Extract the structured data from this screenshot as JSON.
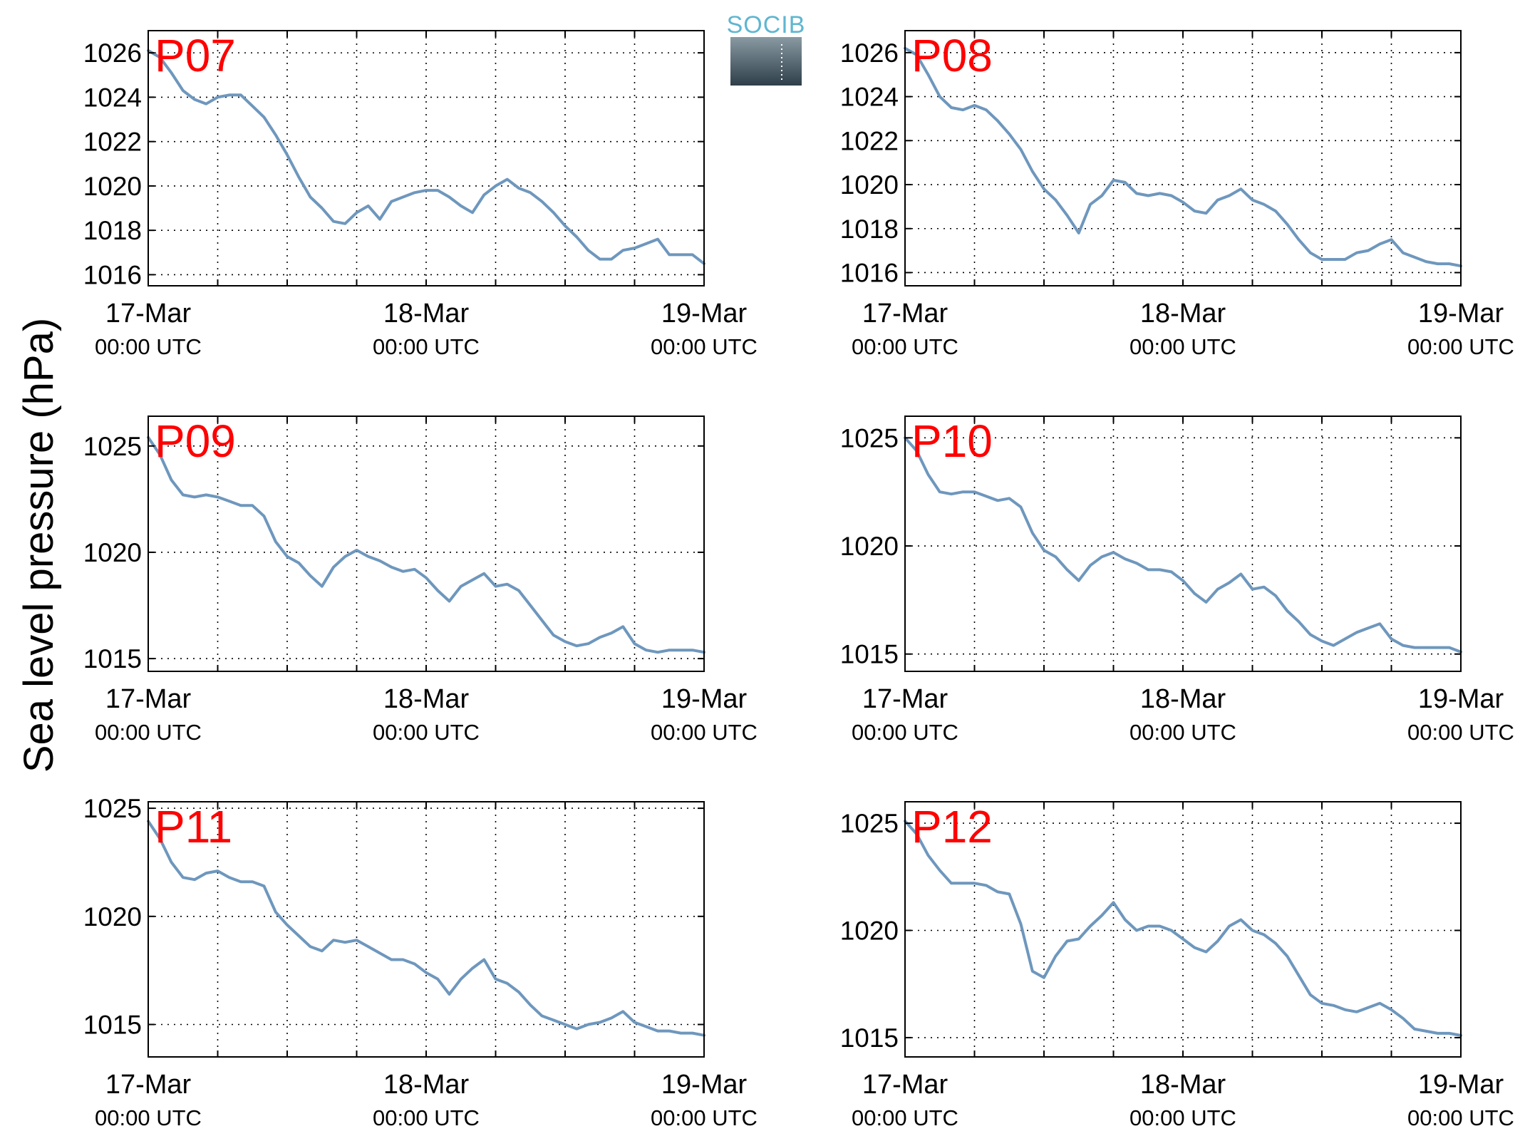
{
  "ylabel": "Sea level pressure (hPa)",
  "logo": {
    "text": "SOCIB",
    "colors": {
      "text": "#5fb6d0",
      "top": "#8a9aa3",
      "bottom": "#2e3f4a"
    }
  },
  "colors": {
    "line": "#6e97bd",
    "label": "#ff0000",
    "axis": "#000000",
    "grid": "#000000"
  },
  "grid": "dotted",
  "chart_data": [
    {
      "type": "line",
      "title": "P07",
      "xlim": [
        0,
        48
      ],
      "xticks": [
        0,
        24,
        48
      ],
      "xticklabels": [
        [
          "17-Mar",
          "00:00 UTC"
        ],
        [
          "18-Mar",
          "00:00 UTC"
        ],
        [
          "19-Mar",
          "00:00 UTC"
        ]
      ],
      "xgrid": [
        6,
        12,
        18,
        24,
        30,
        36,
        42
      ],
      "ylim": [
        1015.5,
        1027
      ],
      "yticks": [
        1016,
        1018,
        1020,
        1022,
        1024,
        1026
      ],
      "series": [
        {
          "x": [
            0,
            1,
            2,
            3,
            4,
            5,
            6,
            7,
            8,
            9,
            10,
            11,
            12,
            13,
            14,
            15,
            16,
            17,
            18,
            19,
            20,
            21,
            22,
            23,
            24,
            25,
            26,
            27,
            28,
            29,
            30,
            31,
            32,
            33,
            34,
            35,
            36,
            37,
            38,
            39,
            40,
            41,
            42,
            43,
            44,
            45,
            46,
            47,
            48
          ],
          "y": [
            1026.1,
            1025.8,
            1025.1,
            1024.3,
            1023.9,
            1023.7,
            1024.0,
            1024.1,
            1024.1,
            1023.6,
            1023.1,
            1022.3,
            1021.4,
            1020.4,
            1019.5,
            1019.0,
            1018.4,
            1018.3,
            1018.8,
            1019.1,
            1018.5,
            1019.3,
            1019.5,
            1019.7,
            1019.8,
            1019.8,
            1019.5,
            1019.1,
            1018.8,
            1019.6,
            1020.0,
            1020.3,
            1019.9,
            1019.7,
            1019.3,
            1018.8,
            1018.2,
            1017.7,
            1017.1,
            1016.7,
            1016.7,
            1017.1,
            1017.2,
            1017.4,
            1017.6,
            1016.9,
            1016.9,
            1016.9,
            1016.5
          ]
        }
      ]
    },
    {
      "type": "line",
      "title": "P08",
      "xlim": [
        0,
        48
      ],
      "xticks": [
        0,
        24,
        48
      ],
      "xticklabels": [
        [
          "17-Mar",
          "00:00 UTC"
        ],
        [
          "18-Mar",
          "00:00 UTC"
        ],
        [
          "19-Mar",
          "00:00 UTC"
        ]
      ],
      "xgrid": [
        6,
        12,
        18,
        24,
        30,
        36,
        42
      ],
      "ylim": [
        1015.4,
        1027
      ],
      "yticks": [
        1016,
        1018,
        1020,
        1022,
        1024,
        1026
      ],
      "series": [
        {
          "x": [
            0,
            1,
            2,
            3,
            4,
            5,
            6,
            7,
            8,
            9,
            10,
            11,
            12,
            13,
            14,
            15,
            16,
            17,
            18,
            19,
            20,
            21,
            22,
            23,
            24,
            25,
            26,
            27,
            28,
            29,
            30,
            31,
            32,
            33,
            34,
            35,
            36,
            37,
            38,
            39,
            40,
            41,
            42,
            43,
            44,
            45,
            46,
            47,
            48
          ],
          "y": [
            1026.2,
            1025.9,
            1025.0,
            1024.0,
            1023.5,
            1023.4,
            1023.6,
            1023.4,
            1022.9,
            1022.3,
            1021.6,
            1020.6,
            1019.8,
            1019.3,
            1018.6,
            1017.8,
            1019.1,
            1019.5,
            1020.2,
            1020.1,
            1019.6,
            1019.5,
            1019.6,
            1019.5,
            1019.2,
            1018.8,
            1018.7,
            1019.3,
            1019.5,
            1019.8,
            1019.3,
            1019.1,
            1018.8,
            1018.2,
            1017.5,
            1016.9,
            1016.6,
            1016.6,
            1016.6,
            1016.9,
            1017.0,
            1017.3,
            1017.5,
            1016.9,
            1016.7,
            1016.5,
            1016.4,
            1016.4,
            1016.3
          ]
        }
      ]
    },
    {
      "type": "line",
      "title": "P09",
      "xlim": [
        0,
        48
      ],
      "xticks": [
        0,
        24,
        48
      ],
      "xticklabels": [
        [
          "17-Mar",
          "00:00 UTC"
        ],
        [
          "18-Mar",
          "00:00 UTC"
        ],
        [
          "19-Mar",
          "00:00 UTC"
        ]
      ],
      "xgrid": [
        6,
        12,
        18,
        24,
        30,
        36,
        42
      ],
      "ylim": [
        1014.4,
        1026.4
      ],
      "yticks": [
        1015,
        1020,
        1025
      ],
      "series": [
        {
          "x": [
            0,
            1,
            2,
            3,
            4,
            5,
            6,
            7,
            8,
            9,
            10,
            11,
            12,
            13,
            14,
            15,
            16,
            17,
            18,
            19,
            20,
            21,
            22,
            23,
            24,
            25,
            26,
            27,
            28,
            29,
            30,
            31,
            32,
            33,
            34,
            35,
            36,
            37,
            38,
            39,
            40,
            41,
            42,
            43,
            44,
            45,
            46,
            47,
            48
          ],
          "y": [
            1025.4,
            1024.6,
            1023.4,
            1022.7,
            1022.6,
            1022.7,
            1022.6,
            1022.4,
            1022.2,
            1022.2,
            1021.7,
            1020.5,
            1019.8,
            1019.5,
            1018.9,
            1018.4,
            1019.3,
            1019.8,
            1020.1,
            1019.8,
            1019.6,
            1019.3,
            1019.1,
            1019.2,
            1018.8,
            1018.2,
            1017.7,
            1018.4,
            1018.7,
            1019.0,
            1018.4,
            1018.5,
            1018.2,
            1017.5,
            1016.8,
            1016.1,
            1015.8,
            1015.6,
            1015.7,
            1016.0,
            1016.2,
            1016.5,
            1015.7,
            1015.4,
            1015.3,
            1015.4,
            1015.4,
            1015.4,
            1015.3
          ]
        }
      ]
    },
    {
      "type": "line",
      "title": "P10",
      "xlim": [
        0,
        48
      ],
      "xticks": [
        0,
        24,
        48
      ],
      "xticklabels": [
        [
          "17-Mar",
          "00:00 UTC"
        ],
        [
          "18-Mar",
          "00:00 UTC"
        ],
        [
          "19-Mar",
          "00:00 UTC"
        ]
      ],
      "xgrid": [
        6,
        12,
        18,
        24,
        30,
        36,
        42
      ],
      "ylim": [
        1014.2,
        1026.0
      ],
      "yticks": [
        1015,
        1020,
        1025
      ],
      "series": [
        {
          "x": [
            0,
            1,
            2,
            3,
            4,
            5,
            6,
            7,
            8,
            9,
            10,
            11,
            12,
            13,
            14,
            15,
            16,
            17,
            18,
            19,
            20,
            21,
            22,
            23,
            24,
            25,
            26,
            27,
            28,
            29,
            30,
            31,
            32,
            33,
            34,
            35,
            36,
            37,
            38,
            39,
            40,
            41,
            42,
            43,
            44,
            45,
            46,
            47,
            48
          ],
          "y": [
            1025.0,
            1024.4,
            1023.3,
            1022.5,
            1022.4,
            1022.5,
            1022.5,
            1022.3,
            1022.1,
            1022.2,
            1021.8,
            1020.6,
            1019.8,
            1019.5,
            1018.9,
            1018.4,
            1019.1,
            1019.5,
            1019.7,
            1019.4,
            1019.2,
            1018.9,
            1018.9,
            1018.8,
            1018.4,
            1017.8,
            1017.4,
            1018.0,
            1018.3,
            1018.7,
            1018.0,
            1018.1,
            1017.7,
            1017.0,
            1016.5,
            1015.9,
            1015.6,
            1015.4,
            1015.7,
            1016.0,
            1016.2,
            1016.4,
            1015.7,
            1015.4,
            1015.3,
            1015.3,
            1015.3,
            1015.3,
            1015.1
          ]
        }
      ]
    },
    {
      "type": "line",
      "title": "P11",
      "xlim": [
        0,
        48
      ],
      "xticks": [
        0,
        24,
        48
      ],
      "xticklabels": [
        [
          "17-Mar",
          "00:00 UTC"
        ],
        [
          "18-Mar",
          "00:00 UTC"
        ],
        [
          "19-Mar",
          "00:00 UTC"
        ]
      ],
      "xgrid": [
        6,
        12,
        18,
        24,
        30,
        36,
        42
      ],
      "ylim": [
        1013.5,
        1025.3
      ],
      "yticks": [
        1015,
        1020,
        1025
      ],
      "series": [
        {
          "x": [
            0,
            1,
            2,
            3,
            4,
            5,
            6,
            7,
            8,
            9,
            10,
            11,
            12,
            13,
            14,
            15,
            16,
            17,
            18,
            19,
            20,
            21,
            22,
            23,
            24,
            25,
            26,
            27,
            28,
            29,
            30,
            31,
            32,
            33,
            34,
            35,
            36,
            37,
            38,
            39,
            40,
            41,
            42,
            43,
            44,
            45,
            46,
            47,
            48
          ],
          "y": [
            1024.4,
            1023.6,
            1022.5,
            1021.8,
            1021.7,
            1022.0,
            1022.1,
            1021.8,
            1021.6,
            1021.6,
            1021.4,
            1020.2,
            1019.6,
            1019.1,
            1018.6,
            1018.4,
            1018.9,
            1018.8,
            1018.9,
            1018.6,
            1018.3,
            1018.0,
            1018.0,
            1017.8,
            1017.4,
            1017.1,
            1016.4,
            1017.1,
            1017.6,
            1018.0,
            1017.1,
            1016.9,
            1016.5,
            1015.9,
            1015.4,
            1015.2,
            1015.0,
            1014.8,
            1015.0,
            1015.1,
            1015.3,
            1015.6,
            1015.1,
            1014.9,
            1014.7,
            1014.7,
            1014.6,
            1014.6,
            1014.5
          ]
        }
      ]
    },
    {
      "type": "line",
      "title": "P12",
      "xlim": [
        0,
        48
      ],
      "xticks": [
        0,
        24,
        48
      ],
      "xticklabels": [
        [
          "17-Mar",
          "00:00 UTC"
        ],
        [
          "18-Mar",
          "00:00 UTC"
        ],
        [
          "19-Mar",
          "00:00 UTC"
        ]
      ],
      "xgrid": [
        6,
        12,
        18,
        24,
        30,
        36,
        42
      ],
      "ylim": [
        1014.1,
        1026.0
      ],
      "yticks": [
        1015,
        1020,
        1025
      ],
      "series": [
        {
          "x": [
            0,
            1,
            2,
            3,
            4,
            5,
            6,
            7,
            8,
            9,
            10,
            11,
            12,
            13,
            14,
            15,
            16,
            17,
            18,
            19,
            20,
            21,
            22,
            23,
            24,
            25,
            26,
            27,
            28,
            29,
            30,
            31,
            32,
            33,
            34,
            35,
            36,
            37,
            38,
            39,
            40,
            41,
            42,
            43,
            44,
            45,
            46,
            47,
            48
          ],
          "y": [
            1025.1,
            1024.5,
            1023.5,
            1022.8,
            1022.2,
            1022.2,
            1022.2,
            1022.1,
            1021.8,
            1021.7,
            1020.3,
            1018.1,
            1017.8,
            1018.8,
            1019.5,
            1019.6,
            1020.2,
            1020.7,
            1021.3,
            1020.5,
            1020.0,
            1020.2,
            1020.2,
            1020.0,
            1019.6,
            1019.2,
            1019.0,
            1019.5,
            1020.2,
            1020.5,
            1020.0,
            1019.8,
            1019.4,
            1018.8,
            1017.9,
            1017.0,
            1016.6,
            1016.5,
            1016.3,
            1016.2,
            1016.4,
            1016.6,
            1016.3,
            1015.9,
            1015.4,
            1015.3,
            1015.2,
            1015.2,
            1015.1
          ]
        }
      ]
    }
  ]
}
